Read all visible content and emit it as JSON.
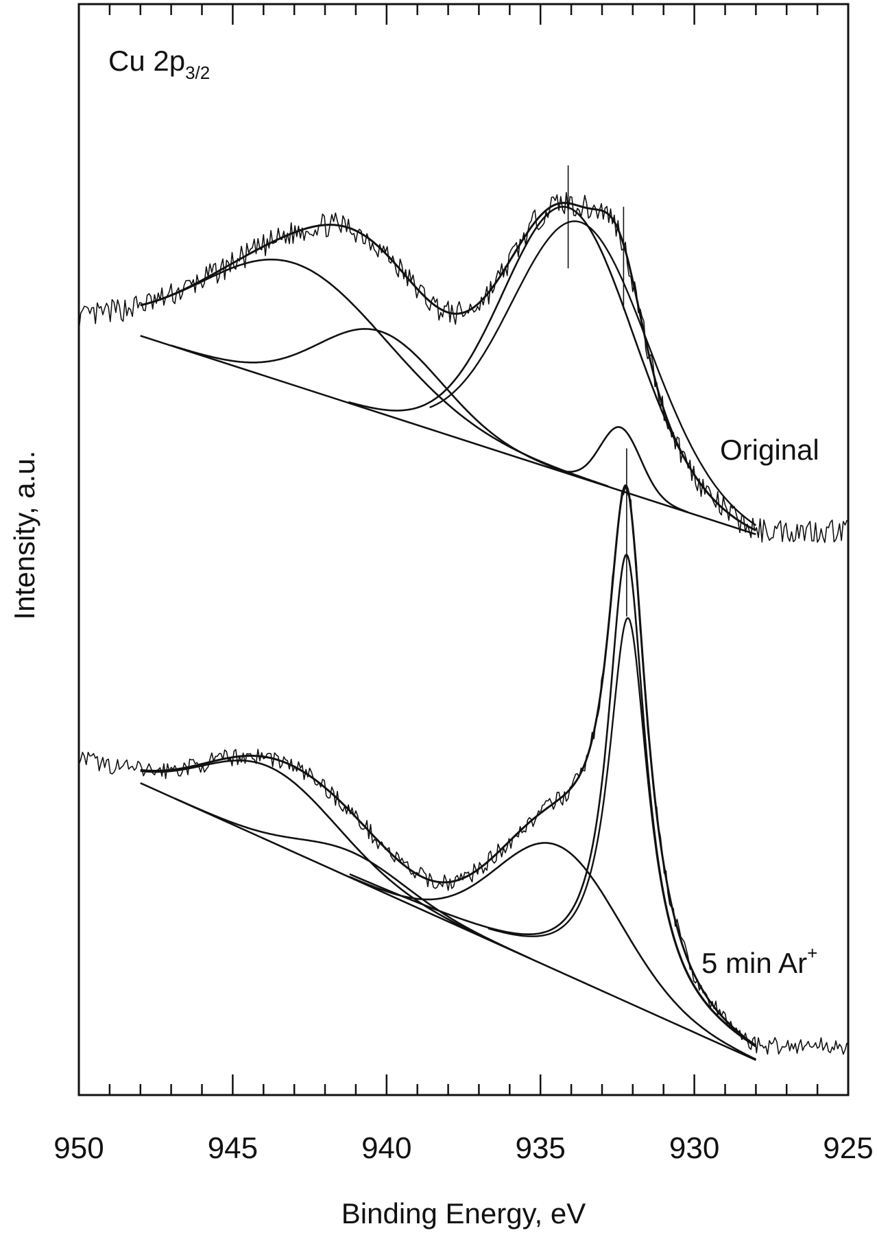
{
  "chart_data": {
    "type": "line",
    "title": "",
    "xlabel": "Binding Energy, eV",
    "ylabel": "Intensity, a.u.",
    "xlim": [
      950,
      925
    ],
    "x_reversed": true,
    "ylim": [
      0,
      100
    ],
    "x_major_ticks": [
      950,
      945,
      940,
      935,
      930,
      925
    ],
    "x_tick_labels": [
      "950",
      "945",
      "940",
      "935",
      "930",
      "925"
    ],
    "x_minor_tick_step": 1,
    "grid": false,
    "legend": "none",
    "annotations": {
      "region_label": {
        "main": "Cu 2p",
        "subscript": "3/2"
      },
      "original_label": "Original",
      "sputtered_label": {
        "main": "5 min Ar",
        "superscript": "+"
      }
    },
    "series": [
      {
        "name": "Original",
        "raw_range": [
          950,
          925
        ],
        "fit_range": [
          948,
          928
        ],
        "baseline": {
          "x": [
            948,
            928
          ],
          "y": [
            69.6,
            51.4
          ]
        },
        "noise": 0.7,
        "peaks": [
          {
            "center": 943.0,
            "height": 11.2,
            "width": 3.0,
            "shape": "gauss"
          },
          {
            "center": 940.2,
            "height": 7.5,
            "width": 2.0,
            "shape": "gauss"
          },
          {
            "center": 934.1,
            "height": 24.4,
            "width": 2.1,
            "shape": "gauss"
          },
          {
            "center": 932.4,
            "height": 5.8,
            "width": 0.65,
            "shape": "gauss"
          }
        ],
        "tail_dx": 1.8,
        "markers": [
          934.1,
          932.3
        ]
      },
      {
        "name": "5 min Ar+",
        "raw_range": [
          950,
          925
        ],
        "fit_range": [
          948,
          928
        ],
        "baseline": {
          "x": [
            948,
            928
          ],
          "y": [
            28.6,
            3.2
          ]
        },
        "noise": 0.5,
        "peaks": [
          {
            "center": 943.8,
            "height": 6.8,
            "width": 2.2,
            "shape": "gauss"
          },
          {
            "center": 941.1,
            "height": 2.4,
            "width": 1.7,
            "shape": "gauss"
          },
          {
            "center": 934.4,
            "height": 11.5,
            "width": 2.0,
            "shape": "gauss"
          },
          {
            "center": 932.2,
            "height": 41.0,
            "width": 0.75,
            "shape": "lorentz"
          }
        ],
        "tail_dx": 0.8,
        "markers": [
          932.2
        ]
      }
    ]
  }
}
